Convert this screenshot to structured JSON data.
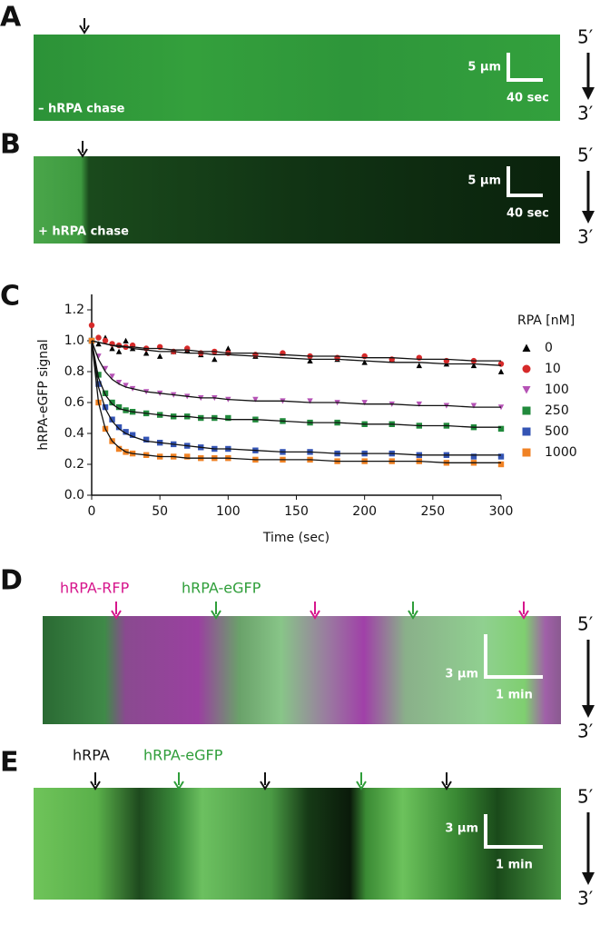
{
  "panels": {
    "A": {
      "letter": "A",
      "caption": "– hRPA chase",
      "scale_y": "5 µm",
      "scale_x": "40 sec",
      "end_top": "5′",
      "end_bottom": "3′"
    },
    "B": {
      "letter": "B",
      "caption": "+ hRPA chase",
      "scale_y": "5 µm",
      "scale_x": "40 sec",
      "end_top": "5′",
      "end_bottom": "3′"
    },
    "C": {
      "letter": "C"
    },
    "D": {
      "letter": "D",
      "labels": [
        "hRPA-RFP",
        "hRPA-eGFP"
      ],
      "scale_y": "3 µm",
      "scale_x": "1 min",
      "end_top": "5′",
      "end_bottom": "3′"
    },
    "E": {
      "letter": "E",
      "labels": [
        "hRPA",
        "hRPA-eGFP"
      ],
      "scale_y": "3 µm",
      "scale_x": "1 min",
      "end_top": "5′",
      "end_bottom": "3′"
    }
  },
  "chart_data": {
    "type": "scatter",
    "x_label": "Time (sec)",
    "y_label": "hRPA-eGFP signal",
    "legend_title": "RPA [nM]",
    "xlim": [
      0,
      300
    ],
    "ylim": [
      0,
      1.3
    ],
    "xticks": [
      0,
      50,
      100,
      150,
      200,
      250,
      300
    ],
    "yticks": [
      {
        "value": 0,
        "label": "0.0"
      },
      {
        "value": 0.2,
        "label": "0.2"
      },
      {
        "value": 0.4,
        "label": "0.4"
      },
      {
        "value": 0.6,
        "label": "0.6"
      },
      {
        "value": 0.8,
        "label": "0.8"
      },
      {
        "value": 1.0,
        "label": "1.0"
      },
      {
        "value": 1.2,
        "label": "1.2"
      }
    ],
    "fit_color": "#111111",
    "x": [
      0,
      5,
      10,
      15,
      20,
      25,
      30,
      40,
      50,
      60,
      70,
      80,
      90,
      100,
      120,
      140,
      160,
      180,
      200,
      220,
      240,
      260,
      280,
      300
    ],
    "series": [
      {
        "name": "0",
        "color": "#000000",
        "marker": "triangle",
        "values": [
          1.0,
          0.98,
          1.02,
          0.95,
          0.93,
          1.0,
          0.95,
          0.92,
          0.9,
          0.93,
          0.94,
          0.91,
          0.88,
          0.95,
          0.9,
          0.92,
          0.87,
          0.88,
          0.86,
          0.88,
          0.84,
          0.85,
          0.84,
          0.8
        ],
        "fit": [
          1.0,
          0.99,
          0.98,
          0.97,
          0.96,
          0.96,
          0.95,
          0.94,
          0.93,
          0.93,
          0.92,
          0.92,
          0.91,
          0.91,
          0.9,
          0.89,
          0.88,
          0.88,
          0.87,
          0.86,
          0.86,
          0.85,
          0.85,
          0.84
        ]
      },
      {
        "name": "10",
        "color": "#d62a2a",
        "marker": "circle",
        "values": [
          1.1,
          1.02,
          1.0,
          0.98,
          0.97,
          0.96,
          0.97,
          0.95,
          0.96,
          0.93,
          0.95,
          0.92,
          0.93,
          0.92,
          0.91,
          0.92,
          0.9,
          0.89,
          0.9,
          0.88,
          0.89,
          0.87,
          0.87,
          0.85
        ],
        "fit": [
          1.0,
          0.99,
          0.98,
          0.97,
          0.97,
          0.96,
          0.96,
          0.95,
          0.95,
          0.94,
          0.94,
          0.93,
          0.93,
          0.92,
          0.92,
          0.91,
          0.9,
          0.9,
          0.89,
          0.89,
          0.88,
          0.88,
          0.87,
          0.87
        ]
      },
      {
        "name": "100",
        "color": "#b552b5",
        "marker": "triangle-down",
        "values": [
          1.0,
          0.9,
          0.82,
          0.77,
          0.73,
          0.71,
          0.69,
          0.67,
          0.66,
          0.65,
          0.64,
          0.63,
          0.63,
          0.62,
          0.62,
          0.61,
          0.61,
          0.6,
          0.6,
          0.59,
          0.59,
          0.58,
          0.58,
          0.57
        ],
        "fit": [
          1.0,
          0.88,
          0.8,
          0.75,
          0.72,
          0.7,
          0.69,
          0.67,
          0.66,
          0.65,
          0.64,
          0.63,
          0.63,
          0.62,
          0.61,
          0.61,
          0.6,
          0.6,
          0.59,
          0.59,
          0.58,
          0.58,
          0.57,
          0.57
        ]
      },
      {
        "name": "250",
        "color": "#218a3c",
        "marker": "square",
        "values": [
          1.0,
          0.78,
          0.66,
          0.6,
          0.57,
          0.55,
          0.54,
          0.53,
          0.52,
          0.51,
          0.51,
          0.5,
          0.5,
          0.5,
          0.49,
          0.48,
          0.47,
          0.47,
          0.46,
          0.46,
          0.45,
          0.45,
          0.44,
          0.43
        ],
        "fit": [
          1.0,
          0.76,
          0.65,
          0.59,
          0.56,
          0.55,
          0.54,
          0.53,
          0.52,
          0.51,
          0.51,
          0.5,
          0.5,
          0.49,
          0.49,
          0.48,
          0.47,
          0.47,
          0.46,
          0.46,
          0.45,
          0.45,
          0.44,
          0.44
        ]
      },
      {
        "name": "500",
        "color": "#3454b4",
        "marker": "square",
        "values": [
          1.0,
          0.72,
          0.57,
          0.49,
          0.44,
          0.41,
          0.39,
          0.36,
          0.34,
          0.33,
          0.32,
          0.31,
          0.3,
          0.3,
          0.29,
          0.28,
          0.28,
          0.27,
          0.27,
          0.27,
          0.26,
          0.26,
          0.25,
          0.25
        ],
        "fit": [
          1.0,
          0.7,
          0.56,
          0.48,
          0.43,
          0.4,
          0.38,
          0.35,
          0.34,
          0.33,
          0.32,
          0.31,
          0.3,
          0.3,
          0.29,
          0.28,
          0.28,
          0.27,
          0.27,
          0.27,
          0.26,
          0.26,
          0.26,
          0.26
        ]
      },
      {
        "name": "1000",
        "color": "#f08224",
        "marker": "square",
        "values": [
          1.0,
          0.6,
          0.43,
          0.35,
          0.3,
          0.28,
          0.27,
          0.26,
          0.25,
          0.25,
          0.25,
          0.24,
          0.24,
          0.24,
          0.23,
          0.23,
          0.23,
          0.22,
          0.22,
          0.22,
          0.22,
          0.21,
          0.21,
          0.2
        ],
        "fit": [
          1.0,
          0.6,
          0.43,
          0.35,
          0.31,
          0.28,
          0.27,
          0.26,
          0.25,
          0.25,
          0.24,
          0.24,
          0.24,
          0.24,
          0.23,
          0.23,
          0.23,
          0.22,
          0.22,
          0.22,
          0.22,
          0.21,
          0.21,
          0.21
        ]
      }
    ]
  }
}
